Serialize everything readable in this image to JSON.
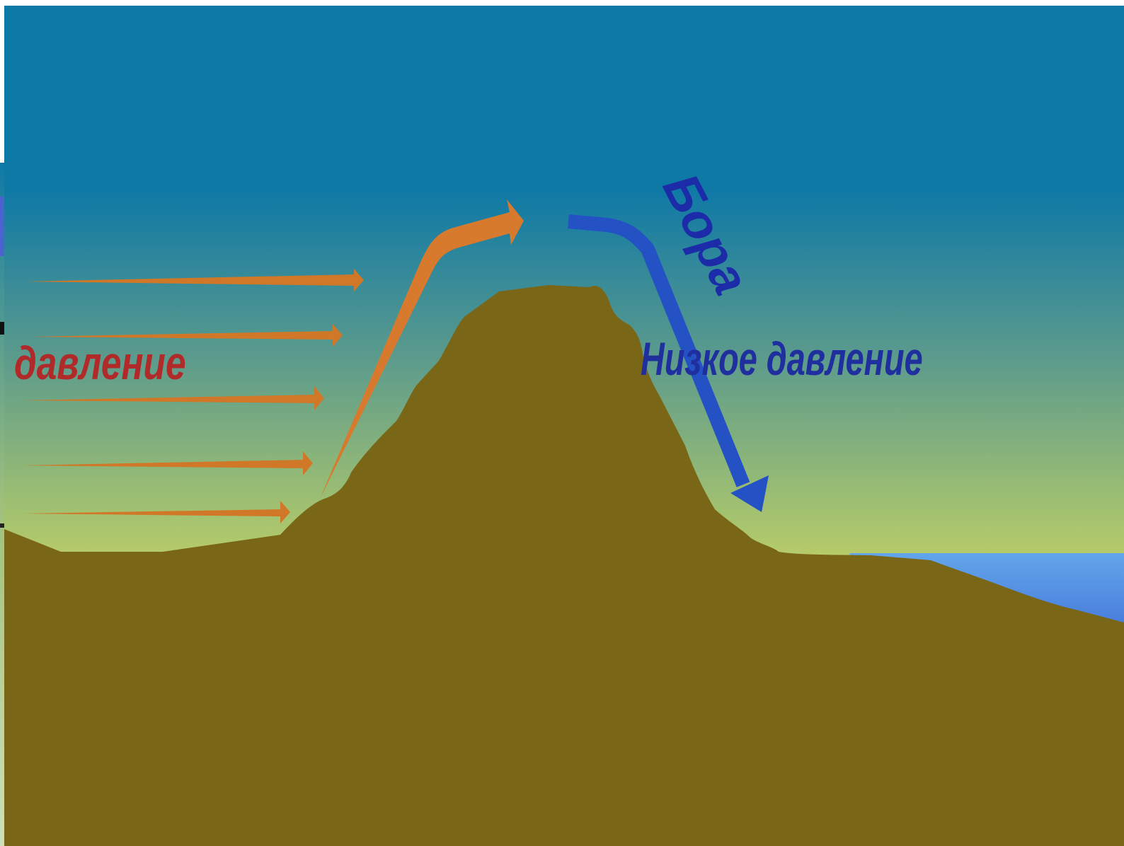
{
  "diagram": {
    "labels": {
      "high_pressure_partial": "давление",
      "low_pressure": "Низкое давление",
      "wind_name": "Бора"
    },
    "colors": {
      "sky_top": "#0f79a6",
      "sky_mid": "#5e9e8a",
      "sky_bottom": "#f6e656",
      "mountain": "#7a6617",
      "warm_arrow": "#d87a2e",
      "cold_arrow": "#2451c4",
      "high_pressure_text": "#b02a2a",
      "low_pressure_text": "#1f2f9e",
      "wind_name_text": "#1c2ca8",
      "sea_top": "#5b9ee8",
      "sea_bottom": "#2a55cf"
    }
  }
}
